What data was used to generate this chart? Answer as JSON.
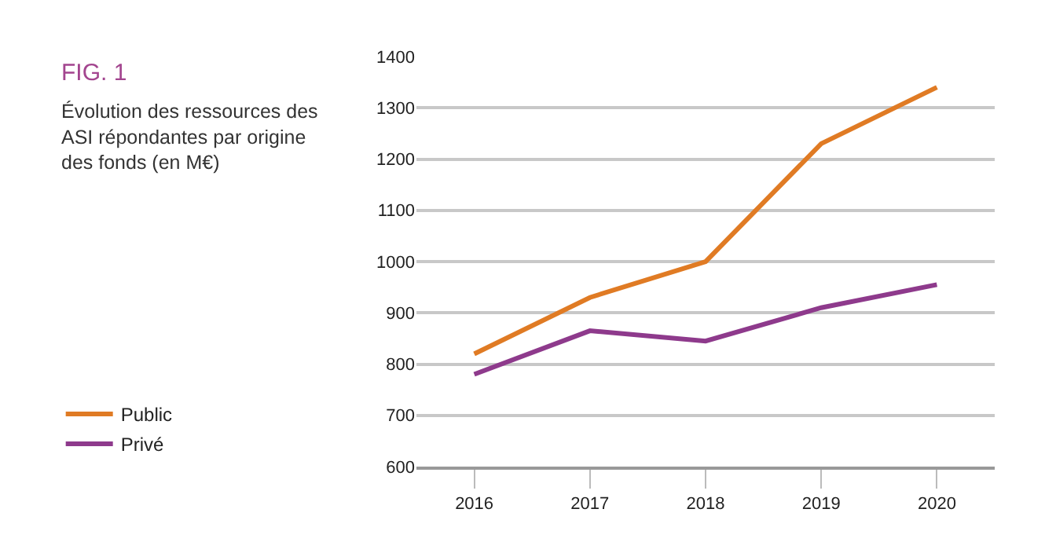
{
  "chart_data": {
    "type": "line",
    "title": "FIG. 1",
    "subtitle": "Évolution des ressources des\nASI répondantes par origine\ndes fonds (en M€)",
    "categories": [
      "2016",
      "2017",
      "2018",
      "2019",
      "2020"
    ],
    "series": [
      {
        "name": "Public",
        "color": "#e07b24",
        "values": [
          820,
          930,
          1000,
          1230,
          1340
        ]
      },
      {
        "name": "Privé",
        "color": "#8e3a8c",
        "values": [
          780,
          865,
          845,
          910,
          955
        ]
      }
    ],
    "ylim": [
      600,
      1400
    ],
    "yticks": [
      600,
      700,
      800,
      900,
      1000,
      1100,
      1200,
      1300,
      1400
    ],
    "grid": "y",
    "legend": "bottom left",
    "marker": "none",
    "line_style": "solid"
  }
}
